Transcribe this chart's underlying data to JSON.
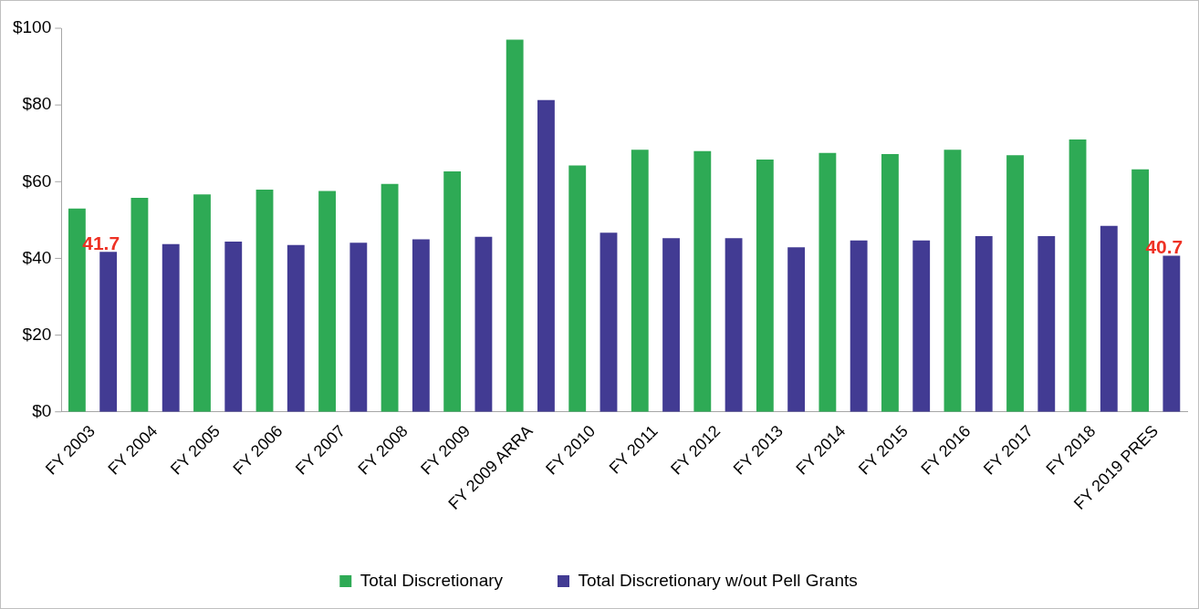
{
  "chart_data": {
    "type": "bar",
    "categories": [
      "FY 2003",
      "FY 2004",
      "FY 2005",
      "FY 2006",
      "FY 2007",
      "FY 2008",
      "FY 2009",
      "FY 2009 ARRA",
      "FY 2010",
      "FY 2011",
      "FY 2012",
      "FY 2013",
      "FY 2014",
      "FY 2015",
      "FY 2016",
      "FY 2017",
      "FY 2018",
      "FY 2019 PRES"
    ],
    "series": [
      {
        "name": "Total Discretionary",
        "color": "#2eaa55",
        "values": [
          53,
          55.8,
          56.7,
          57.9,
          57.6,
          59.4,
          62.7,
          97,
          64.2,
          68.3,
          68,
          65.8,
          67.5,
          67.2,
          68.3,
          66.9,
          71,
          63.2
        ]
      },
      {
        "name": "Total Discretionary w/out Pell Grants",
        "color": "#423b93",
        "values": [
          41.7,
          43.7,
          44.4,
          43.5,
          44.1,
          45,
          45.6,
          81.3,
          46.7,
          45.3,
          45.3,
          42.9,
          44.7,
          44.7,
          45.8,
          45.8,
          48.5,
          40.7
        ],
        "value_labels": [
          "41.7",
          null,
          null,
          null,
          null,
          null,
          null,
          null,
          null,
          null,
          null,
          null,
          null,
          null,
          null,
          null,
          null,
          "40.7"
        ]
      }
    ],
    "ylim": [
      0,
      100
    ],
    "yticks": [
      {
        "value": 0,
        "label": "$0"
      },
      {
        "value": 20,
        "label": "$20"
      },
      {
        "value": 40,
        "label": "$40"
      },
      {
        "value": 60,
        "label": "$60"
      },
      {
        "value": 80,
        "label": "$80"
      },
      {
        "value": 100,
        "label": "$100"
      }
    ],
    "grid": false,
    "legend": "bottom"
  }
}
